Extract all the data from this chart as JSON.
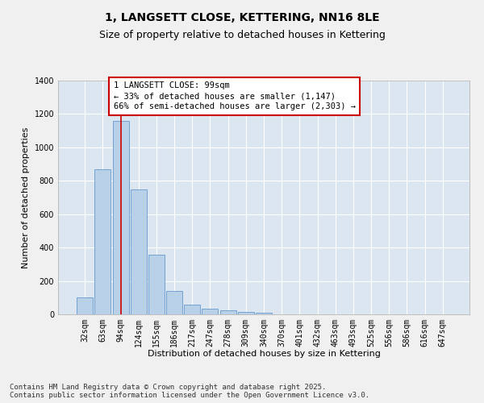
{
  "title": "1, LANGSETT CLOSE, KETTERING, NN16 8LE",
  "subtitle": "Size of property relative to detached houses in Kettering",
  "xlabel": "Distribution of detached houses by size in Kettering",
  "ylabel": "Number of detached properties",
  "categories": [
    "32sqm",
    "63sqm",
    "94sqm",
    "124sqm",
    "155sqm",
    "186sqm",
    "217sqm",
    "247sqm",
    "278sqm",
    "309sqm",
    "340sqm",
    "370sqm",
    "401sqm",
    "432sqm",
    "463sqm",
    "493sqm",
    "525sqm",
    "556sqm",
    "586sqm",
    "616sqm",
    "647sqm"
  ],
  "values": [
    100,
    870,
    1160,
    750,
    355,
    140,
    60,
    35,
    25,
    15,
    10,
    0,
    0,
    0,
    0,
    0,
    0,
    0,
    0,
    0,
    0
  ],
  "bar_color": "#b8d0e8",
  "bar_edge_color": "#6699cc",
  "background_color": "#dce6f0",
  "plot_bg_color": "#dce6f0",
  "fig_bg_color": "#f0f0f0",
  "grid_color": "#ffffff",
  "annotation_text": "1 LANGSETT CLOSE: 99sqm\n← 33% of detached houses are smaller (1,147)\n66% of semi-detached houses are larger (2,303) →",
  "annotation_box_facecolor": "#ffffff",
  "annotation_box_edgecolor": "#cc0000",
  "vline_color": "#cc0000",
  "vline_x_idx": 2,
  "ylim": [
    0,
    1400
  ],
  "yticks": [
    0,
    200,
    400,
    600,
    800,
    1000,
    1200,
    1400
  ],
  "footnote": "Contains HM Land Registry data © Crown copyright and database right 2025.\nContains public sector information licensed under the Open Government Licence v3.0.",
  "title_fontsize": 10,
  "subtitle_fontsize": 9,
  "xlabel_fontsize": 8,
  "ylabel_fontsize": 8,
  "tick_fontsize": 7,
  "annotation_fontsize": 7.5,
  "footnote_fontsize": 6.5
}
